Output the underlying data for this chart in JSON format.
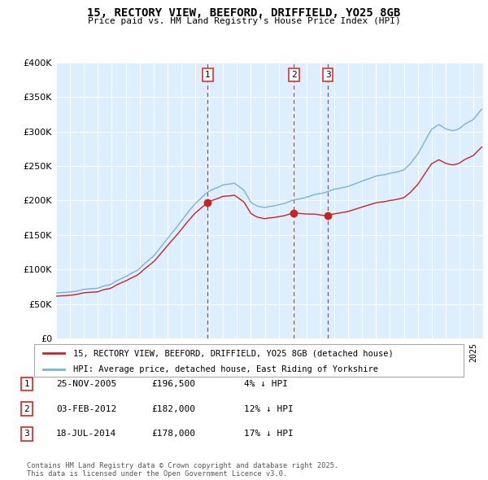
{
  "title": "15, RECTORY VIEW, BEEFORD, DRIFFIELD, YO25 8GB",
  "subtitle": "Price paid vs. HM Land Registry's House Price Index (HPI)",
  "ylim": [
    0,
    400000
  ],
  "yticks": [
    0,
    50000,
    100000,
    150000,
    200000,
    250000,
    300000,
    350000,
    400000
  ],
  "ytick_labels": [
    "£0",
    "£50K",
    "£100K",
    "£150K",
    "£200K",
    "£250K",
    "£300K",
    "£350K",
    "£400K"
  ],
  "hpi_color": "#7ab3d4",
  "price_color": "#cc2222",
  "vline_color": "#dd3333",
  "background_color": "#ddeeff",
  "grid_color": "#ffffff",
  "transactions": [
    {
      "label": "1",
      "date": "25-NOV-2005",
      "price": 196500,
      "price_str": "£196,500",
      "pct": "4%",
      "direction": "↓",
      "year": 2005.9
    },
    {
      "label": "2",
      "date": "03-FEB-2012",
      "price": 182000,
      "price_str": "£182,000",
      "pct": "12%",
      "direction": "↓",
      "year": 2012.1
    },
    {
      "label": "3",
      "date": "18-JUL-2014",
      "price": 178000,
      "price_str": "£178,000",
      "pct": "17%",
      "direction": "↓",
      "year": 2014.55
    }
  ],
  "legend_property_label": "15, RECTORY VIEW, BEEFORD, DRIFFIELD, YO25 8GB (detached house)",
  "legend_hpi_label": "HPI: Average price, detached house, East Riding of Yorkshire",
  "footnote": "Contains HM Land Registry data © Crown copyright and database right 2025.\nThis data is licensed under the Open Government Licence v3.0.",
  "xstart_year": 1995,
  "xend_year": 2025
}
